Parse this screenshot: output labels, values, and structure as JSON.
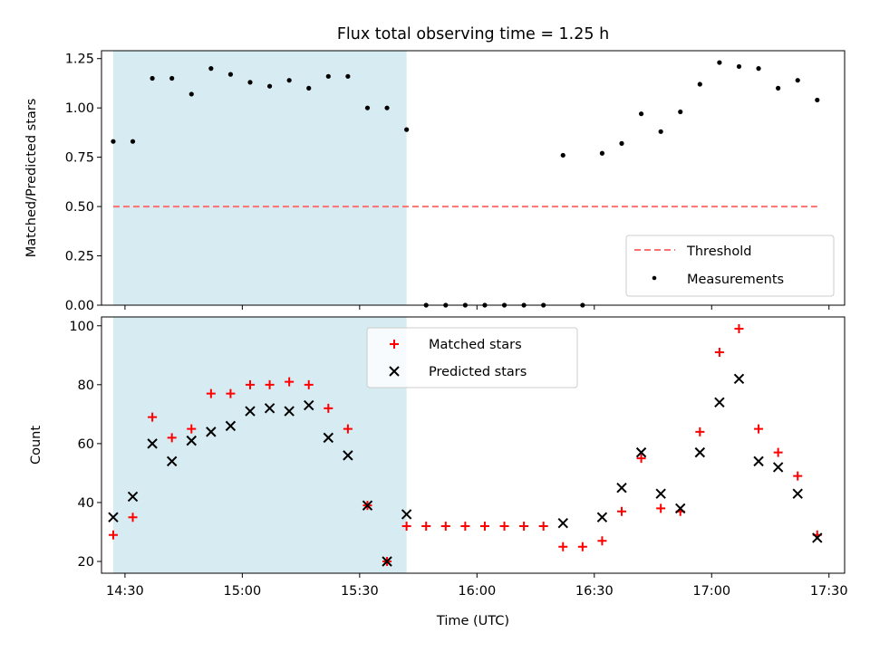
{
  "chart_data": [
    {
      "type": "scatter",
      "title": "Flux total observing time = 1.25 h",
      "xlabel": "",
      "ylabel": "Matched/Predicted stars",
      "ylim": [
        0,
        1.29
      ],
      "yticks": [
        "0.00",
        "0.25",
        "0.50",
        "0.75",
        "1.00",
        "1.25"
      ],
      "x_range": [
        "14:24",
        "17:34"
      ],
      "x_tick_times": [
        "14:30",
        "15:00",
        "15:30",
        "16:00",
        "16:30",
        "17:00",
        "17:30"
      ],
      "x_tick_labels_visible": false,
      "shaded_span": [
        "14:27",
        "15:42"
      ],
      "shaded_color": "#add8e6",
      "legend": {
        "placement": "lower right",
        "entries": [
          "Threshold",
          "Measurements"
        ]
      },
      "threshold": {
        "name": "Threshold",
        "value": 0.5,
        "x_start": "14:27",
        "x_end": "17:27",
        "color": "#ff7070",
        "style": "dashed"
      },
      "series": [
        {
          "name": "Measurements",
          "marker": "dot",
          "color": "#000000",
          "x": [
            "14:27",
            "14:32",
            "14:37",
            "14:42",
            "14:47",
            "14:52",
            "14:57",
            "15:02",
            "15:07",
            "15:12",
            "15:17",
            "15:22",
            "15:27",
            "15:32",
            "15:37",
            "15:42",
            "15:47",
            "15:52",
            "15:57",
            "16:02",
            "16:07",
            "16:12",
            "16:17",
            "16:22",
            "16:27",
            "16:32",
            "16:37",
            "16:42",
            "16:47",
            "16:52",
            "16:57",
            "17:02",
            "17:07",
            "17:12",
            "17:17",
            "17:22",
            "17:27"
          ],
          "y": [
            0.83,
            0.83,
            1.15,
            1.15,
            1.07,
            1.2,
            1.17,
            1.13,
            1.11,
            1.14,
            1.1,
            1.16,
            1.16,
            1.0,
            1.0,
            0.89,
            0.0,
            0.0,
            0.0,
            0.0,
            0.0,
            0.0,
            0.0,
            0.76,
            0.0,
            0.77,
            0.82,
            0.97,
            0.88,
            0.98,
            1.12,
            1.23,
            1.21,
            1.2,
            1.1,
            1.14,
            1.04
          ]
        }
      ]
    },
    {
      "type": "scatter",
      "title": "",
      "xlabel": "Time (UTC)",
      "ylabel": "Count",
      "ylim": [
        16,
        103
      ],
      "yticks": [
        "20",
        "40",
        "60",
        "80",
        "100"
      ],
      "x_range": [
        "14:24",
        "17:34"
      ],
      "x_tick_times": [
        "14:30",
        "15:00",
        "15:30",
        "16:00",
        "16:30",
        "17:00",
        "17:30"
      ],
      "x_tick_labels_visible": true,
      "shaded_span": [
        "14:27",
        "15:42"
      ],
      "shaded_color": "#add8e6",
      "legend": {
        "placement": "upper center",
        "entries": [
          "Matched stars",
          "Predicted stars"
        ]
      },
      "series": [
        {
          "name": "Matched stars",
          "marker": "plus",
          "color": "#ff0000",
          "x": [
            "14:27",
            "14:32",
            "14:37",
            "14:42",
            "14:47",
            "14:52",
            "14:57",
            "15:02",
            "15:07",
            "15:12",
            "15:17",
            "15:22",
            "15:27",
            "15:32",
            "15:37",
            "15:42",
            "15:47",
            "15:52",
            "15:57",
            "16:02",
            "16:07",
            "16:12",
            "16:17",
            "16:22",
            "16:27",
            "16:32",
            "16:37",
            "16:42",
            "16:47",
            "16:52",
            "16:57",
            "17:02",
            "17:07",
            "17:12",
            "17:17",
            "17:22",
            "17:27"
          ],
          "y": [
            29,
            35,
            69,
            62,
            65,
            77,
            77,
            80,
            80,
            81,
            80,
            72,
            65,
            39,
            20,
            32,
            32,
            32,
            32,
            32,
            32,
            32,
            32,
            25,
            25,
            27,
            37,
            55,
            38,
            37,
            64,
            91,
            99,
            65,
            57,
            49,
            29
          ]
        },
        {
          "name": "Predicted stars",
          "marker": "x",
          "color": "#000000",
          "x": [
            "14:27",
            "14:32",
            "14:37",
            "14:42",
            "14:47",
            "14:52",
            "14:57",
            "15:02",
            "15:07",
            "15:12",
            "15:17",
            "15:22",
            "15:27",
            "15:32",
            "15:37",
            "15:42",
            "16:22",
            "16:32",
            "16:37",
            "16:42",
            "16:47",
            "16:52",
            "16:57",
            "17:02",
            "17:07",
            "17:12",
            "17:17",
            "17:22",
            "17:27"
          ],
          "y": [
            35,
            42,
            60,
            54,
            61,
            64,
            66,
            71,
            72,
            71,
            73,
            62,
            56,
            39,
            20,
            36,
            33,
            35,
            45,
            57,
            43,
            38,
            57,
            74,
            82,
            54,
            52,
            43,
            28
          ]
        }
      ]
    }
  ]
}
